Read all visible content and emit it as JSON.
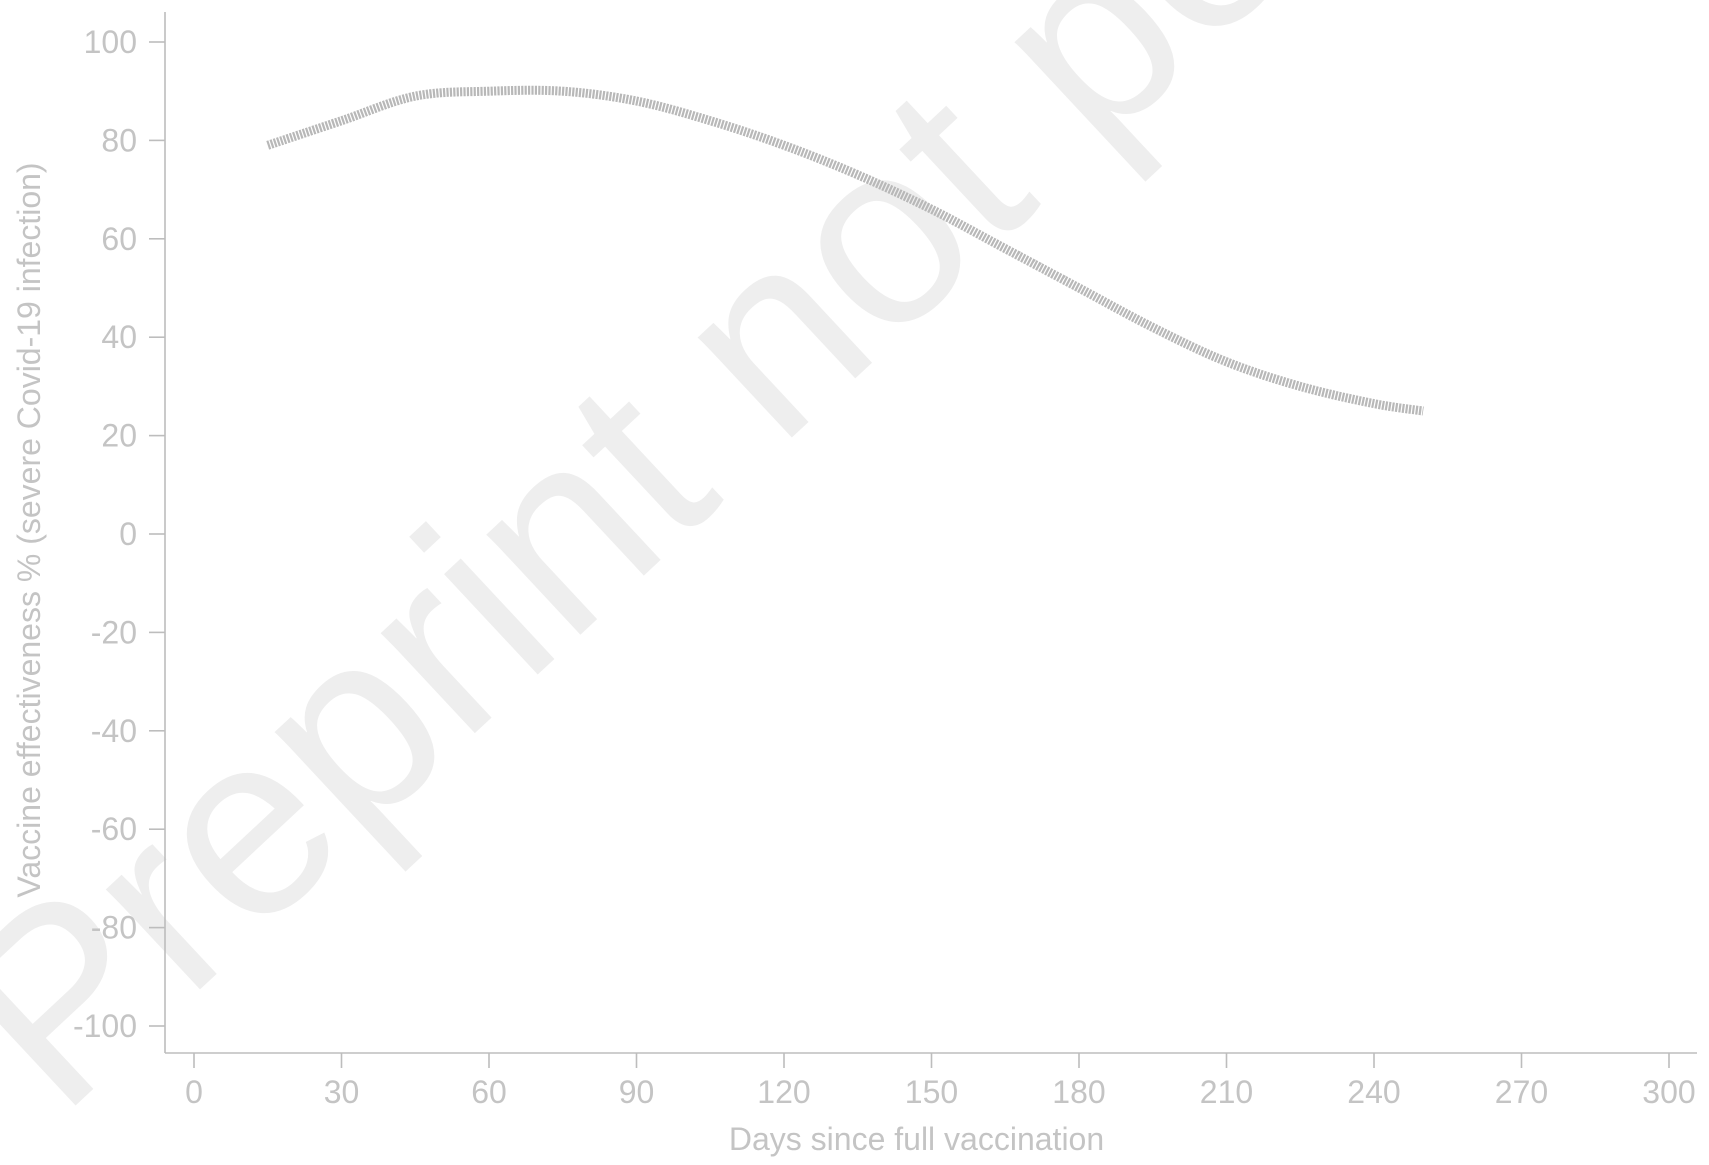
{
  "watermark": "Preprint not peer reviewed",
  "chart_data": {
    "type": "line",
    "title": "",
    "xlabel": "Days since full vaccination",
    "ylabel": "Vaccine effectiveness % (severe Covid-19 infection)",
    "xlim": [
      0,
      300
    ],
    "ylim": [
      -100,
      100
    ],
    "x_ticks": [
      0,
      30,
      60,
      90,
      120,
      150,
      180,
      210,
      240,
      270,
      300
    ],
    "y_ticks": [
      100,
      80,
      60,
      40,
      20,
      0,
      -20,
      -40,
      -60,
      -80,
      -100
    ],
    "grid": false,
    "legend": "none",
    "series": [
      {
        "color": "#b8b8b8",
        "x": [
          15,
          30,
          45,
          60,
          75,
          90,
          105,
          120,
          135,
          150,
          165,
          180,
          195,
          210,
          225,
          240,
          250
        ],
        "y": [
          79,
          84,
          89,
          90,
          90,
          88,
          84,
          79,
          73,
          66,
          58,
          50,
          42,
          35,
          30,
          26.5,
          25
        ]
      }
    ]
  }
}
